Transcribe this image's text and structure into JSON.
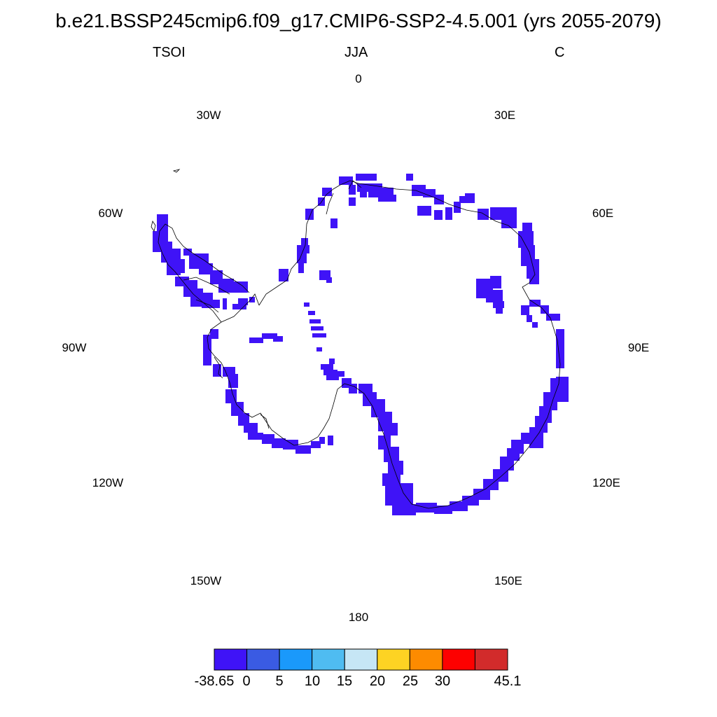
{
  "title": "b.e21.BSSP245cmip6.f09_g17.CMIP6-SSP2-4.5.001 (yrs 2055-2079)",
  "left_label": "TSOI",
  "center_label": "JJA",
  "right_label": "C",
  "longitude_labels": [
    "0",
    "30E",
    "60E",
    "90E",
    "120E",
    "150E",
    "180",
    "150W",
    "120W",
    "90W",
    "60W",
    "30W"
  ],
  "colorbar": {
    "colors": [
      "#3f13f7",
      "#3a5be3",
      "#1a99fb",
      "#4fbcf1",
      "#c6e6f5",
      "#fdd323",
      "#fd8b00",
      "#fd0100",
      "#d22b2b"
    ],
    "tick_labels": [
      "-38.65",
      "0",
      "5",
      "10",
      "15",
      "20",
      "25",
      "30",
      "45.1"
    ]
  },
  "map": {
    "projection": "south-polar-stereographic",
    "shaded_color": "#3f13f7",
    "coastline_color": "#000000"
  }
}
